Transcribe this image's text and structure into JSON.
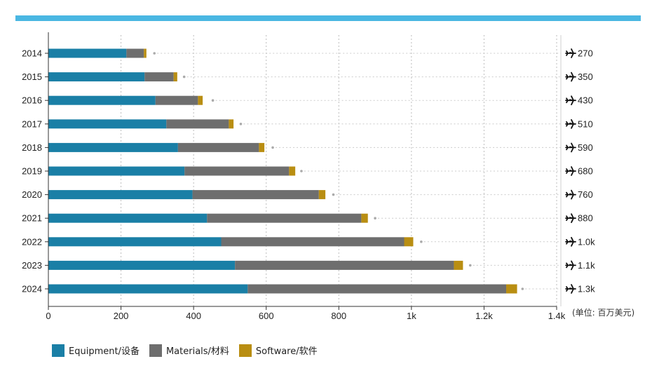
{
  "colors": {
    "top_bar": "#4ab7e2",
    "equipment": "#1a7fa6",
    "materials": "#6e6e6e",
    "software": "#b98e12",
    "marker": "#aaaaaa",
    "grid": "#bdbdbd"
  },
  "unit_label": "(单位: 百万美元)",
  "total_icon": "airplane-icon",
  "chart_data": {
    "type": "bar",
    "orientation": "horizontal",
    "stacked": true,
    "categories": [
      "2014",
      "2015",
      "2016",
      "2017",
      "2018",
      "2019",
      "2020",
      "2021",
      "2022",
      "2023",
      "2024"
    ],
    "series": [
      {
        "name": "Equipment/设备",
        "values": [
          215,
          265,
          295,
          325,
          357,
          375,
          397,
          437,
          476,
          514,
          549
        ]
      },
      {
        "name": "Materials/材料",
        "values": [
          48,
          80,
          117,
          172,
          223,
          288,
          348,
          425,
          504,
          603,
          712
        ]
      },
      {
        "name": "Software/软件",
        "values": [
          7,
          10,
          13,
          13,
          15,
          17,
          18,
          18,
          25,
          25,
          30
        ]
      }
    ],
    "markers": [
      292,
      374,
      453,
      530,
      618,
      697,
      785,
      900,
      1027,
      1162,
      1306
    ],
    "totals": [
      "270",
      "350",
      "430",
      "510",
      "590",
      "680",
      "760",
      "880",
      "1.0k",
      "1.1k",
      "1.3k"
    ],
    "x_ticks": [
      "0",
      "200",
      "400",
      "600",
      "800",
      "1k",
      "1.2k",
      "1.4k"
    ],
    "xlim": [
      0,
      1400
    ],
    "grid": true,
    "legend_position": "bottom-left"
  }
}
